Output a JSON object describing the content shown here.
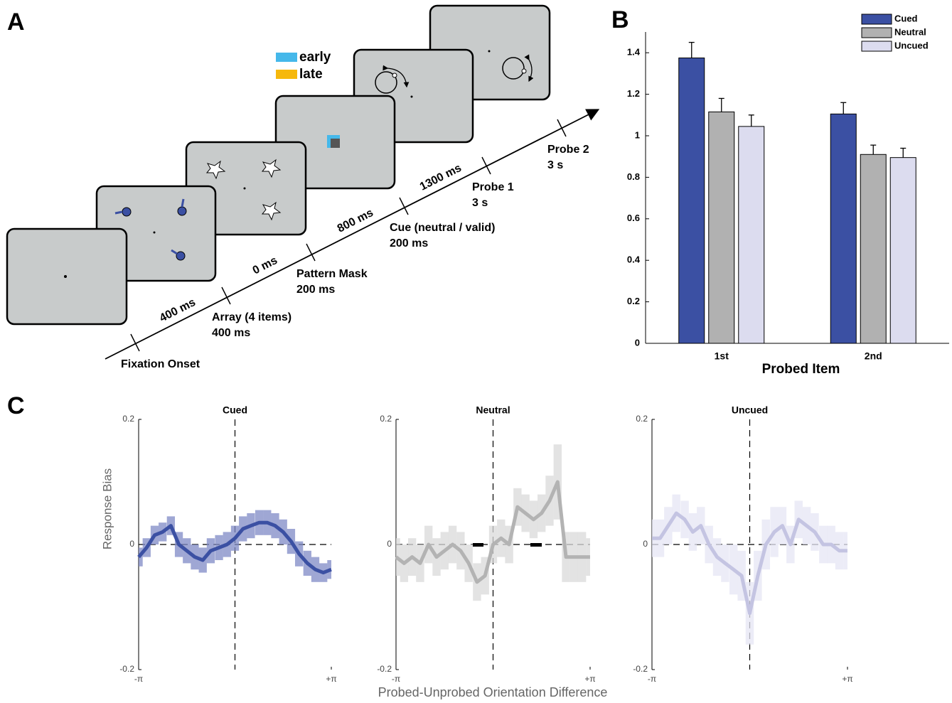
{
  "panel_labels": [
    "A",
    "B",
    "C"
  ],
  "diagram": {
    "legend": [
      "early",
      "late"
    ],
    "intervals": [
      "400 ms",
      "0 ms",
      "800 ms",
      "1300 ms"
    ],
    "events": [
      {
        "name": "Fixation Onset"
      },
      {
        "name": "Array (4 items)",
        "duration": "400 ms"
      },
      {
        "name": "Pattern Mask",
        "duration": "200 ms"
      },
      {
        "name": "Cue (neutral / valid)",
        "duration": "200 ms"
      },
      {
        "name": "Probe 1",
        "duration": "3 s"
      },
      {
        "name": "Probe 2",
        "duration": "3 s"
      }
    ]
  },
  "panel_c": {
    "ylabel": "Response Bias",
    "xlabel": "Probed-Unprobed Orientation Difference"
  },
  "chart_data": [
    {
      "type": "bar",
      "xlabel": "Probed Item",
      "categories": [
        "1st",
        "2nd"
      ],
      "ylim": [
        0,
        1.5
      ],
      "yticks": [
        0,
        0.2,
        0.4,
        0.6,
        0.8,
        1,
        1.2,
        1.4
      ],
      "legend": "top-right",
      "series": [
        {
          "name": "Cued",
          "color": "#3b50a3",
          "values": [
            1.375,
            1.105
          ],
          "errors": [
            0.075,
            0.055
          ]
        },
        {
          "name": "Neutral",
          "color": "#b1b1b1",
          "values": [
            1.115,
            0.91
          ],
          "errors": [
            0.065,
            0.045
          ]
        },
        {
          "name": "Uncued",
          "color": "#dcdcef",
          "values": [
            1.045,
            0.895
          ],
          "errors": [
            0.055,
            0.045
          ]
        }
      ]
    },
    {
      "type": "line",
      "title": "Cued",
      "color": "#3b50a3",
      "band_color": "#7f89c6",
      "x": [
        -3.14,
        -2.88,
        -2.62,
        -2.36,
        -2.09,
        -1.83,
        -1.57,
        -1.31,
        -1.05,
        -0.79,
        -0.52,
        -0.26,
        0,
        0.26,
        0.52,
        0.79,
        1.05,
        1.31,
        1.57,
        1.83,
        2.09,
        2.36,
        2.62,
        2.88,
        3.14
      ],
      "values": [
        -0.02,
        -0.005,
        0.015,
        0.02,
        0.03,
        0.0,
        -0.01,
        -0.02,
        -0.025,
        -0.01,
        -0.005,
        0.0,
        0.01,
        0.025,
        0.03,
        0.035,
        0.035,
        0.03,
        0.02,
        0.005,
        -0.015,
        -0.03,
        -0.04,
        -0.045,
        -0.04
      ],
      "errors": [
        0.015,
        0.015,
        0.015,
        0.015,
        0.015,
        0.02,
        0.02,
        0.02,
        0.02,
        0.02,
        0.02,
        0.02,
        0.02,
        0.02,
        0.02,
        0.02,
        0.02,
        0.02,
        0.02,
        0.02,
        0.02,
        0.02,
        0.02,
        0.015,
        0.015
      ],
      "xlim": [
        -3.1416,
        3.1416
      ],
      "xticks": [
        {
          "value": -3.1416,
          "label": "-π"
        },
        {
          "value": 3.1416,
          "label": "+π"
        }
      ],
      "ylim": [
        -0.2,
        0.2
      ],
      "yticks": [
        0.2,
        0,
        -0.2
      ]
    },
    {
      "type": "line",
      "title": "Neutral",
      "color": "#b3b3b3",
      "band_color": "#dadada",
      "x": [
        -3.14,
        -2.88,
        -2.62,
        -2.36,
        -2.09,
        -1.83,
        -1.57,
        -1.31,
        -1.05,
        -0.79,
        -0.52,
        -0.26,
        0,
        0.26,
        0.52,
        0.79,
        1.05,
        1.31,
        1.57,
        1.83,
        2.09,
        2.36,
        2.62,
        2.88,
        3.14
      ],
      "values": [
        -0.02,
        -0.03,
        -0.02,
        -0.03,
        0.0,
        -0.02,
        -0.01,
        0.0,
        -0.01,
        -0.03,
        -0.06,
        -0.05,
        0.0,
        0.01,
        0.0,
        0.06,
        0.05,
        0.04,
        0.05,
        0.07,
        0.1,
        -0.02,
        -0.02,
        -0.02,
        -0.02
      ],
      "errors": [
        0.03,
        0.03,
        0.03,
        0.03,
        0.03,
        0.03,
        0.03,
        0.03,
        0.03,
        0.03,
        0.03,
        0.03,
        0.03,
        0.03,
        0.03,
        0.03,
        0.03,
        0.03,
        0.03,
        0.04,
        0.06,
        0.04,
        0.04,
        0.04,
        0.03
      ],
      "xlim": [
        -3.1416,
        3.1416
      ],
      "xticks": [
        {
          "value": -3.1416,
          "label": "-π"
        },
        {
          "value": 3.1416,
          "label": "+π"
        }
      ],
      "ylim": [
        -0.2,
        0.2
      ],
      "yticks": [
        0.2,
        0,
        -0.2
      ]
    },
    {
      "type": "line",
      "title": "Uncued",
      "color": "#c4c4e2",
      "band_color": "#e6e6f4",
      "x": [
        -3.14,
        -2.88,
        -2.62,
        -2.36,
        -2.09,
        -1.83,
        -1.57,
        -1.31,
        -1.05,
        -0.79,
        -0.52,
        -0.26,
        0,
        0.26,
        0.52,
        0.79,
        1.05,
        1.31,
        1.57,
        1.83,
        2.09,
        2.36,
        2.62,
        2.88,
        3.14
      ],
      "values": [
        0.01,
        0.01,
        0.03,
        0.05,
        0.04,
        0.02,
        0.03,
        0.0,
        -0.02,
        -0.03,
        -0.04,
        -0.05,
        -0.11,
        -0.05,
        0.0,
        0.02,
        0.03,
        0.0,
        0.04,
        0.03,
        0.02,
        0.0,
        0.0,
        -0.01,
        -0.01
      ],
      "errors": [
        0.03,
        0.03,
        0.03,
        0.03,
        0.03,
        0.03,
        0.03,
        0.03,
        0.03,
        0.03,
        0.04,
        0.04,
        0.05,
        0.04,
        0.04,
        0.04,
        0.03,
        0.03,
        0.03,
        0.03,
        0.03,
        0.03,
        0.03,
        0.03,
        0.03
      ],
      "xlim": [
        -3.1416,
        3.1416
      ],
      "xticks": [
        {
          "value": -3.1416,
          "label": "-π"
        },
        {
          "value": 3.1416,
          "label": "+π"
        }
      ],
      "ylim": [
        -0.2,
        0.2
      ],
      "yticks": [
        0.2,
        0,
        -0.2
      ]
    }
  ]
}
